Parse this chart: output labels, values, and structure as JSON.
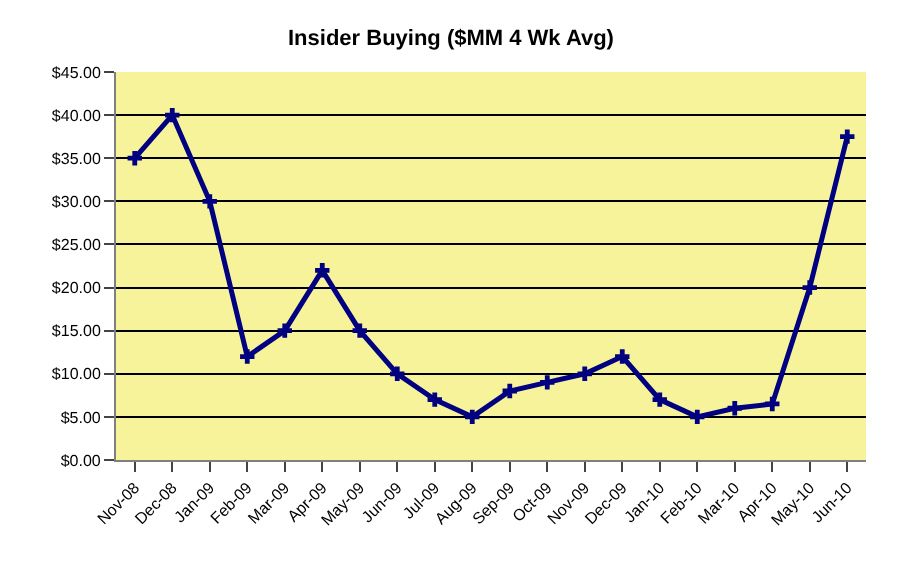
{
  "chart_data": {
    "type": "line",
    "title": "Insider Buying ($MM 4 Wk Avg)",
    "categories": [
      "Nov-08",
      "Dec-08",
      "Jan-09",
      "Feb-09",
      "Mar-09",
      "Apr-09",
      "May-09",
      "Jun-09",
      "Jul-09",
      "Aug-09",
      "Sep-09",
      "Oct-09",
      "Nov-09",
      "Dec-09",
      "Jan-10",
      "Feb-10",
      "Mar-10",
      "Apr-10",
      "May-10",
      "Jun-10"
    ],
    "series": [
      {
        "color": "#000080",
        "values": [
          35,
          40,
          30,
          12,
          15,
          22,
          15,
          10,
          7,
          5,
          8,
          9,
          10,
          12,
          7,
          5,
          6,
          6.5,
          20,
          37.5
        ]
      }
    ],
    "ylim": [
      0,
      45
    ],
    "yticks": [
      {
        "value": 0,
        "label": "$0.00"
      },
      {
        "value": 5,
        "label": "$5.00"
      },
      {
        "value": 10,
        "label": "$10.00"
      },
      {
        "value": 15,
        "label": "$15.00"
      },
      {
        "value": 20,
        "label": "$20.00"
      },
      {
        "value": 25,
        "label": "$25.00"
      },
      {
        "value": 30,
        "label": "$30.00"
      },
      {
        "value": 35,
        "label": "$35.00"
      },
      {
        "value": 40,
        "label": "$40.00"
      },
      {
        "value": 45,
        "label": "$45.00"
      }
    ],
    "grid": "y",
    "marker": "cross",
    "line_style": "solid"
  }
}
